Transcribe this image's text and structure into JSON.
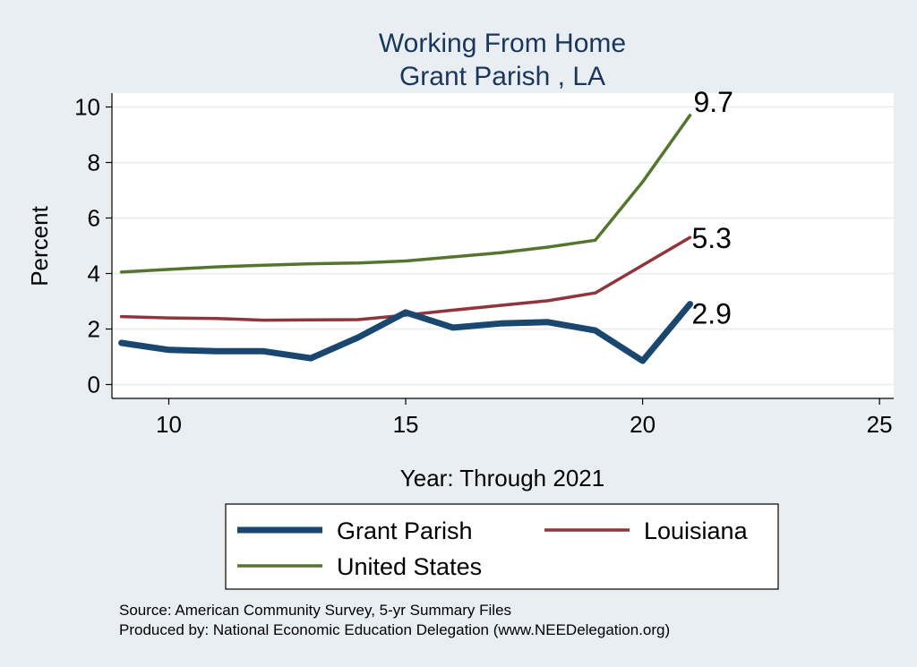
{
  "chart_data": {
    "type": "line",
    "title": [
      "Working From Home",
      "Grant Parish , LA"
    ],
    "xlabel": "Year: Through 2021",
    "ylabel": "Percent",
    "xlim": [
      8.8,
      25.3
    ],
    "ylim": [
      -0.5,
      10.5
    ],
    "xticks": [
      10,
      15,
      20,
      25
    ],
    "yticks": [
      0,
      2,
      4,
      6,
      8,
      10
    ],
    "grid": true,
    "legend_position": "bottom",
    "series": [
      {
        "name": "Grant Parish",
        "color": "#1a476f",
        "x": [
          9,
          10,
          11,
          12,
          13,
          14,
          15,
          16,
          17,
          18,
          19,
          20,
          21
        ],
        "y": [
          1.5,
          1.25,
          1.2,
          1.2,
          0.95,
          1.7,
          2.6,
          2.05,
          2.2,
          2.25,
          1.95,
          0.85,
          2.9
        ],
        "end_label": "2.9"
      },
      {
        "name": "Louisiana",
        "color": "#90353b",
        "x": [
          9,
          10,
          11,
          12,
          13,
          14,
          15,
          16,
          17,
          18,
          19,
          20,
          21
        ],
        "y": [
          2.45,
          2.4,
          2.38,
          2.32,
          2.33,
          2.34,
          2.5,
          2.68,
          2.85,
          3.02,
          3.3,
          4.3,
          5.3
        ],
        "end_label": "5.3"
      },
      {
        "name": "United States",
        "color": "#55752f",
        "x": [
          9,
          10,
          11,
          12,
          13,
          14,
          15,
          16,
          17,
          18,
          19,
          20,
          21
        ],
        "y": [
          4.05,
          4.15,
          4.24,
          4.3,
          4.35,
          4.38,
          4.45,
          4.6,
          4.75,
          4.95,
          5.2,
          7.3,
          9.7
        ],
        "end_label": "9.7"
      }
    ]
  },
  "notes": {
    "source": "Source: American Community Survey, 5-yr Summary Files",
    "produced_by": "Produced by: National Economic Education Delegation (www.NEEDelegation.org)"
  }
}
